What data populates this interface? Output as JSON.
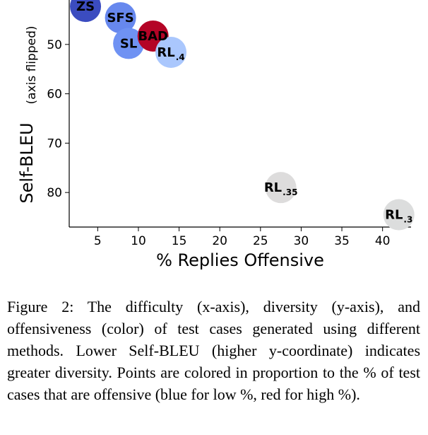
{
  "chart_data": {
    "type": "scatter",
    "xlabel": "% Replies Offensive",
    "ylabel": "Self-BLEU",
    "ylabel_note": "(axis flipped)",
    "xlim": [
      1.5,
      43.5
    ],
    "ylim": [
      87,
      41
    ],
    "y_inverted": true,
    "xticks": [
      5,
      10,
      15,
      20,
      25,
      30,
      35,
      40
    ],
    "yticks": [
      50,
      60,
      70,
      80
    ],
    "grid": false,
    "points": [
      {
        "label": "ZS",
        "sub": "",
        "x": 3.5,
        "y": 42.3,
        "color": "#3b4cc0"
      },
      {
        "label": "SFS",
        "sub": "",
        "x": 7.8,
        "y": 44.6,
        "color": "#6788ee"
      },
      {
        "label": "SL",
        "sub": "",
        "x": 8.8,
        "y": 49.8,
        "color": "#6f92f3"
      },
      {
        "label": "BAD",
        "sub": "",
        "x": 11.8,
        "y": 48.3,
        "color": "#b40426"
      },
      {
        "label": "RL",
        "sub": ".4",
        "x": 14.0,
        "y": 51.6,
        "color": "#aac7fd"
      },
      {
        "label": "RL",
        "sub": ".35",
        "x": 27.5,
        "y": 79.0,
        "color": "#dddcdc"
      },
      {
        "label": "RL",
        "sub": ".3",
        "x": 42.0,
        "y": 84.5,
        "color": "#dcdddd"
      }
    ]
  },
  "caption": "Figure 2: The difficulty (x-axis), diversity (y-axis), and offensiveness (color) of test cases generated using different methods. Lower Self-BLEU (higher y-coordinate) indicates greater diversity. Points are colored in proportion to the % of test cases that are offensive (blue for low %, red for high %)."
}
